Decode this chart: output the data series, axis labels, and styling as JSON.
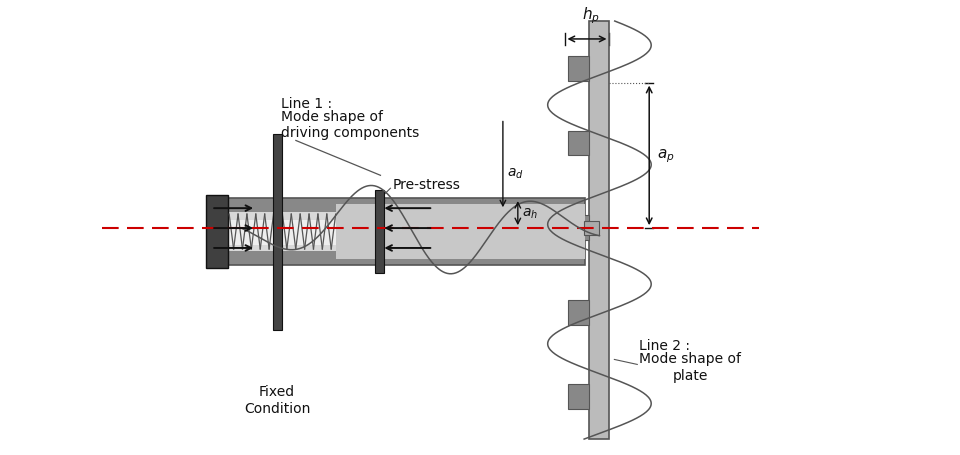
{
  "bg_color": "#ffffff",
  "red_dashed_color": "#cc0000",
  "dark_gray": "#555555",
  "mid_gray": "#888888",
  "light_gray": "#bbbbbb",
  "very_light_gray": "#dddddd",
  "dark": "#333333",
  "black": "#111111",
  "label_line1": "Line 1 :",
  "label_line1_sub": "Mode shape of\ndriving components",
  "label_line2": "Line 2 :",
  "label_line2_sub": "Mode shape of\nplate",
  "label_prestress": "Pre-stress",
  "label_fixed": "Fixed\nCondition"
}
